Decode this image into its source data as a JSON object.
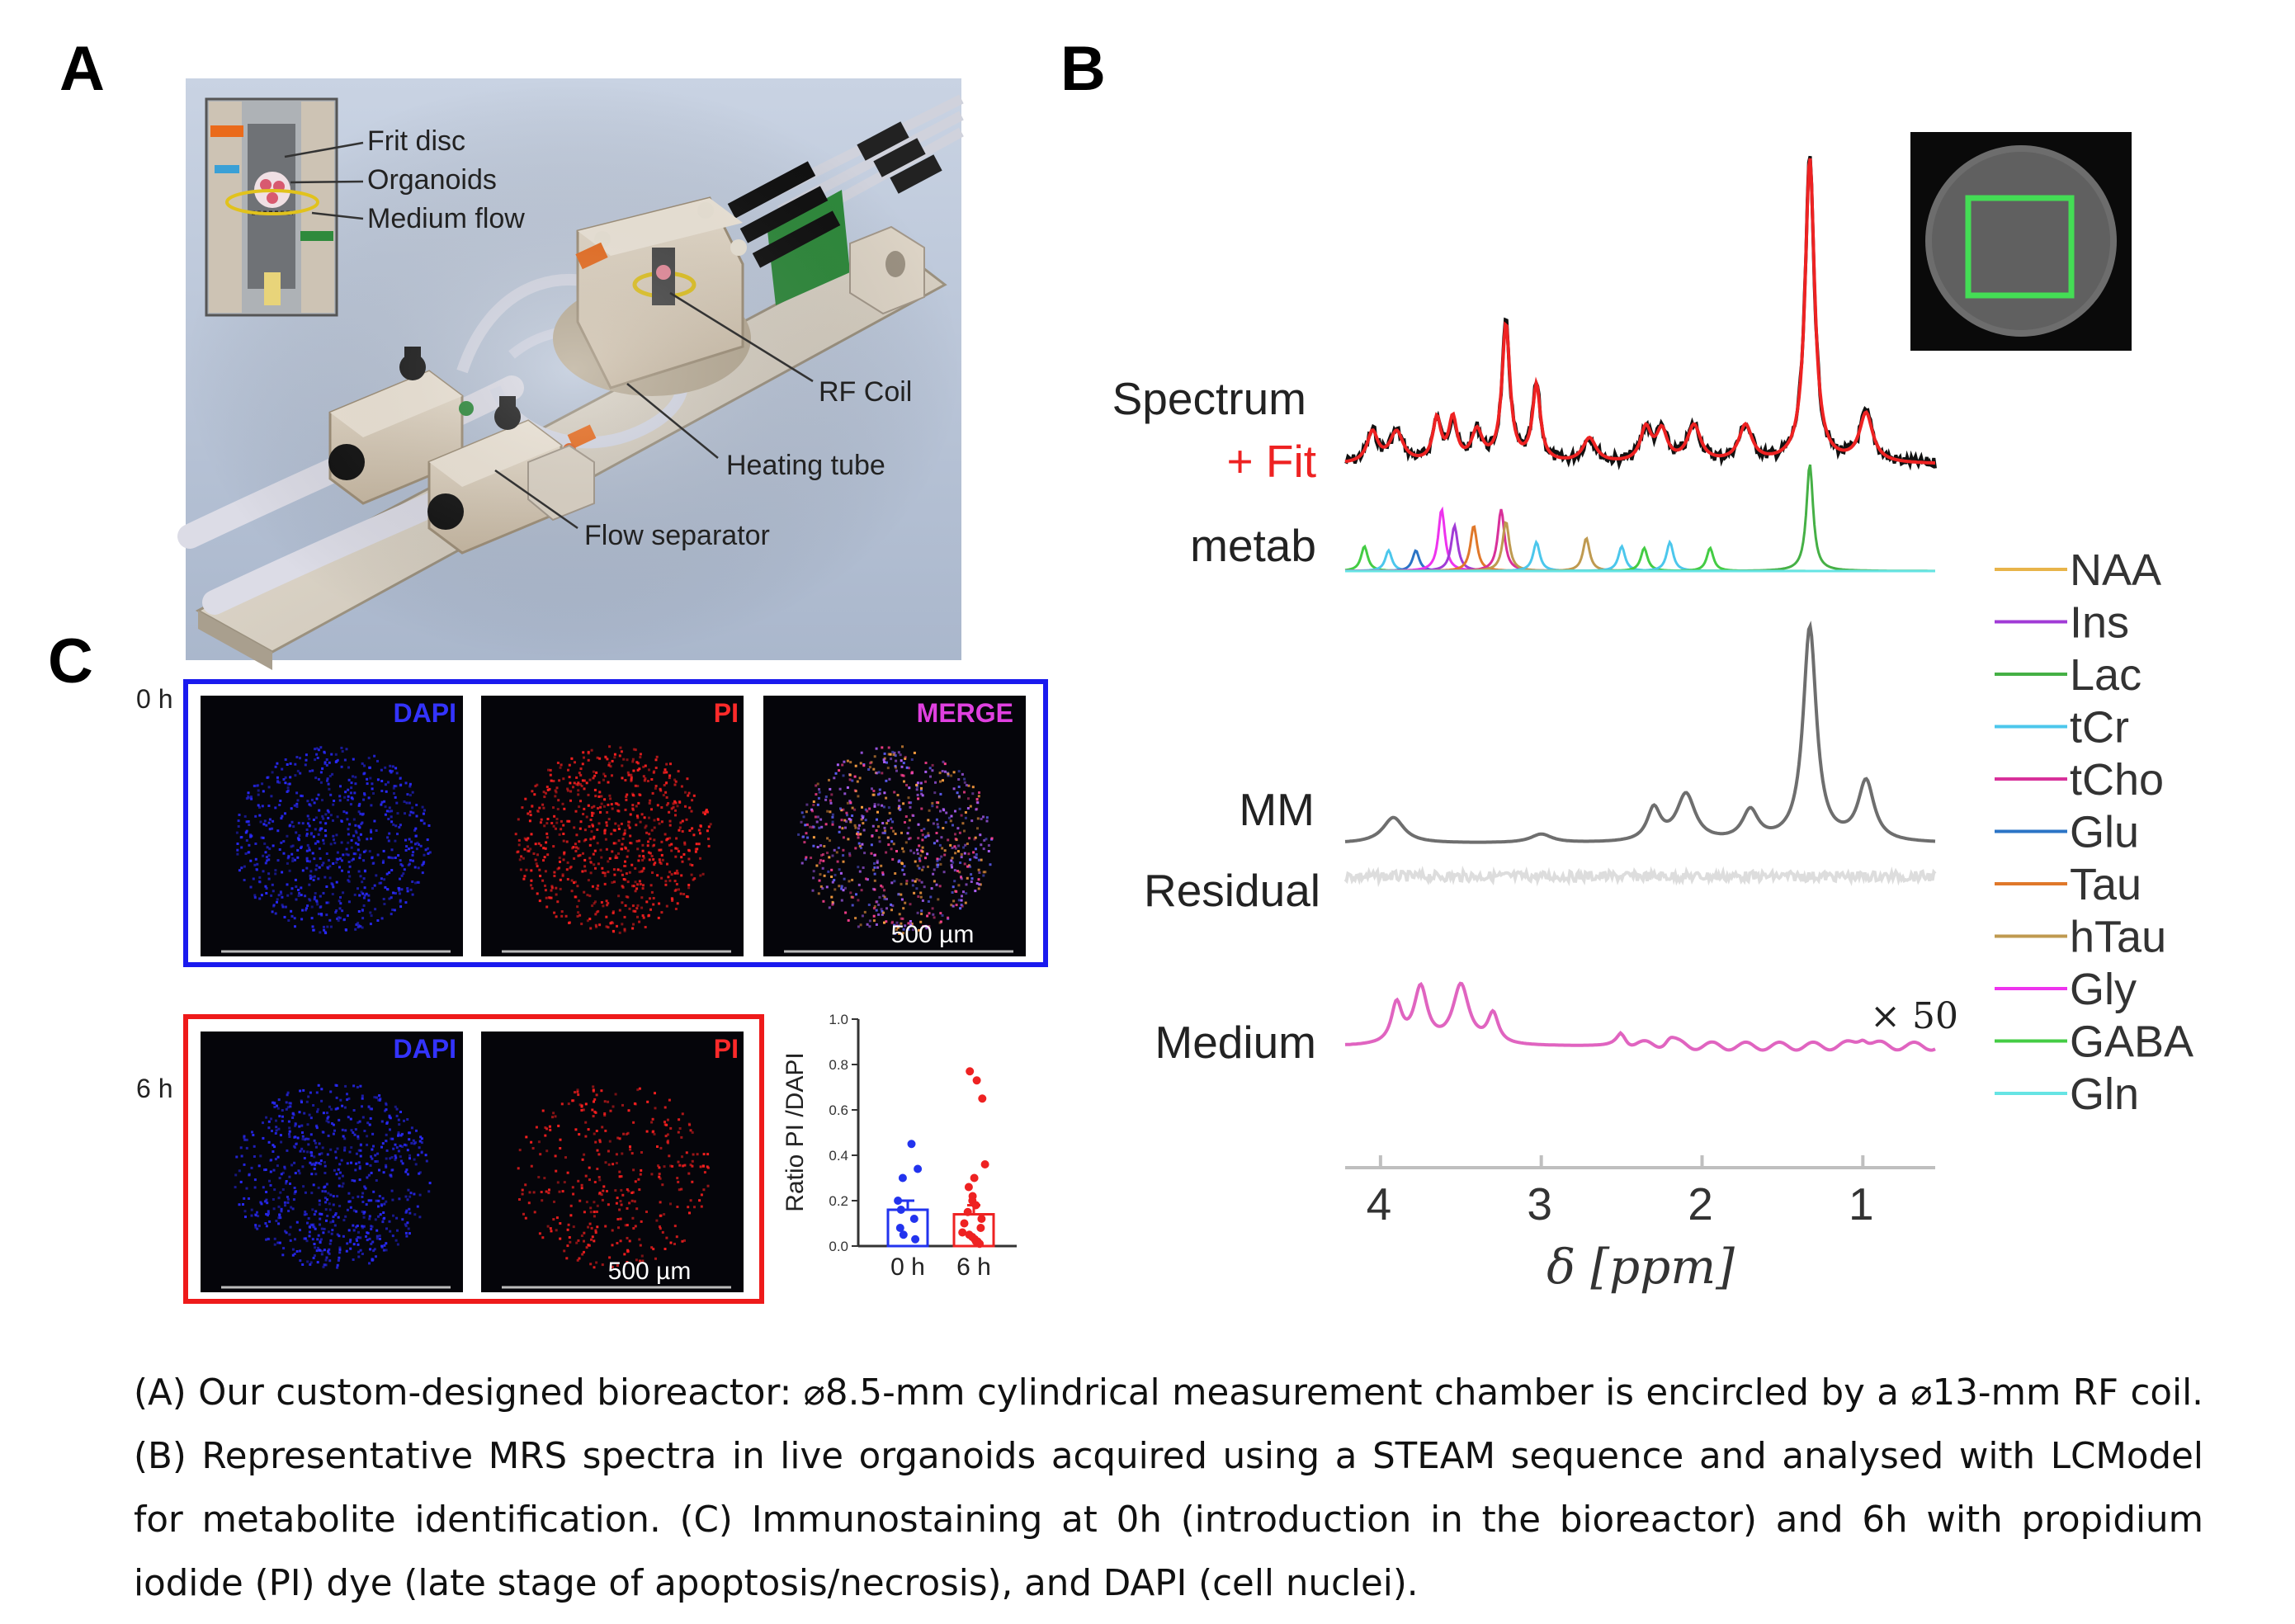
{
  "panels": {
    "a": "A",
    "b": "B",
    "c": "C"
  },
  "panel_a": {
    "labels": {
      "frit_disc": "Frit disc",
      "organoids": "Organoids",
      "medium_flow": "Medium flow",
      "rf_coil": "RF Coil",
      "heating_tube": "Heating tube",
      "flow_separator": "Flow separator"
    }
  },
  "panel_b": {
    "row_labels": {
      "spectrum": "Spectrum",
      "fit": "+ Fit",
      "metab": "metab",
      "mm": "MM",
      "residual": "Residual",
      "medium": "Medium"
    },
    "scale_note": "× 50",
    "legend": [
      {
        "name": "NAA",
        "color": "#e8b44a"
      },
      {
        "name": "Ins",
        "color": "#a13bd6"
      },
      {
        "name": "Lac",
        "color": "#45b045"
      },
      {
        "name": "tCr",
        "color": "#4cc7ec"
      },
      {
        "name": "tCho",
        "color": "#d8309a"
      },
      {
        "name": "Glu",
        "color": "#2b74c6"
      },
      {
        "name": "Tau",
        "color": "#e0782a"
      },
      {
        "name": "hTau",
        "color": "#bf9a50"
      },
      {
        "name": "Gly",
        "color": "#ee33ee"
      },
      {
        "name": "GABA",
        "color": "#44cc44"
      },
      {
        "name": "Gln",
        "color": "#66e4e4"
      }
    ],
    "x_ticks": [
      "4",
      "3",
      "2",
      "1"
    ],
    "x_label": "δ [ppm]"
  },
  "panel_c": {
    "row_0h": "0 h",
    "row_6h": "6 h",
    "dapi": "DAPI",
    "pi": "PI",
    "merge": "MERGE",
    "scale_bar": "500 µm",
    "colors": {
      "frame_0h": "#1a1aee",
      "frame_6h": "#ee1a1a"
    }
  },
  "chart_data": {
    "type": "bar",
    "categories": [
      "0 h",
      "6 h"
    ],
    "values": [
      0.16,
      0.14
    ],
    "ylabel": "Ratio PI /DAPI",
    "ylim": [
      0,
      1.0
    ],
    "y_ticks": [
      "0.0",
      "0.2",
      "0.4",
      "0.6",
      "0.8",
      "1.0"
    ],
    "points": {
      "0 h": [
        0.45,
        0.34,
        0.3,
        0.2,
        0.16,
        0.12,
        0.08,
        0.05,
        0.03
      ],
      "6 h": [
        0.77,
        0.73,
        0.65,
        0.36,
        0.3,
        0.26,
        0.22,
        0.2,
        0.18,
        0.15,
        0.12,
        0.1,
        0.08,
        0.06,
        0.05,
        0.04,
        0.03,
        0.02,
        0.02,
        0.01
      ]
    },
    "colors": [
      "#2233ee",
      "#ee2222"
    ]
  },
  "caption": "(A) Our custom-designed bioreactor: ⌀8.5-mm cylindrical measurement chamber is encircled by a ⌀13-mm RF coil. (B) Representative MRS spectra in live organoids acquired using a STEAM sequence and analysed with LCModel for metabolite identification. (C) Immunostaining at 0h (introduction in the bioreactor) and 6h with propidium iodide (PI) dye (late stage of apoptosis/necrosis), and DAPI (cell nuclei)."
}
